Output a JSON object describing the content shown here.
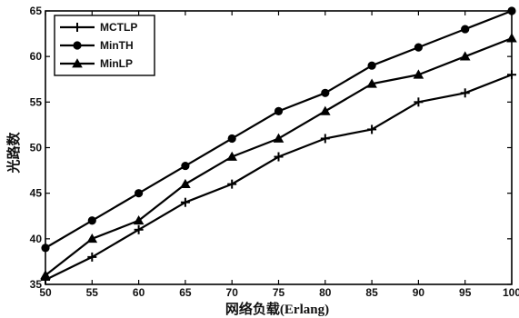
{
  "chart_data": {
    "type": "line",
    "title": "",
    "xlabel": "网络负载(Erlang)",
    "ylabel": "光路数",
    "x": [
      50,
      55,
      60,
      65,
      70,
      75,
      80,
      85,
      90,
      95,
      100
    ],
    "x_ticks": [
      "50",
      "55",
      "60",
      "65",
      "70",
      "75",
      "80",
      "85",
      "90",
      "95",
      "100"
    ],
    "y_ticks": [
      "35",
      "40",
      "45",
      "50",
      "55",
      "60",
      "65"
    ],
    "xlim": [
      50,
      100
    ],
    "ylim": [
      35,
      65
    ],
    "grid": false,
    "legend_position": "top-left",
    "series": [
      {
        "name": "MCTLP",
        "marker": "plus",
        "values": [
          35.5,
          38,
          41,
          44,
          46,
          49,
          51,
          52,
          55,
          56,
          58
        ]
      },
      {
        "name": "MinTH",
        "marker": "circle",
        "values": [
          39,
          42,
          45,
          48,
          51,
          54,
          56,
          59,
          61,
          63,
          65
        ]
      },
      {
        "name": "MinLP",
        "marker": "triangle",
        "values": [
          36,
          40,
          42,
          46,
          49,
          51,
          54,
          57,
          58,
          60,
          62
        ]
      }
    ],
    "line_color": "#000000"
  }
}
